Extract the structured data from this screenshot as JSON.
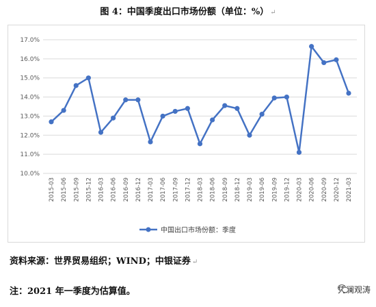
{
  "chart_data": {
    "type": "line",
    "title": "图 4：中国季度出口市场份额（单位：%）",
    "categories": [
      "2015-03",
      "2015-06",
      "2015-09",
      "2015-12",
      "2016-03",
      "2016-06",
      "2016-09",
      "2016-12",
      "2017-03",
      "2017-06",
      "2017-09",
      "2017-12",
      "2018-03",
      "2018-06",
      "2018-09",
      "2018-12",
      "2019-03",
      "2019-06",
      "2019-09",
      "2019-12",
      "2020-03",
      "2020-06",
      "2020-09",
      "2020-12",
      "2021-03"
    ],
    "series": [
      {
        "name": "中国出口市场份额：季度",
        "values": [
          12.7,
          13.3,
          14.6,
          15.0,
          12.15,
          12.9,
          13.85,
          13.85,
          11.65,
          13.0,
          13.25,
          13.4,
          11.55,
          12.8,
          13.55,
          13.4,
          12.0,
          13.1,
          13.95,
          14.0,
          11.1,
          16.65,
          15.8,
          15.95,
          14.2
        ],
        "color": "#4472c4"
      }
    ],
    "ylim": [
      10.0,
      17.0
    ],
    "yticks": [
      "10.0%",
      "11.0%",
      "12.0%",
      "13.0%",
      "14.0%",
      "15.0%",
      "16.0%",
      "17.0%"
    ],
    "grid": true,
    "legend": "bottom",
    "xlabel": "",
    "ylabel": ""
  },
  "source": "资料来源：世界贸易组织；WIND；中银证券",
  "note": "注：2021 年一季度为估算值。",
  "watermark": "凭澜观涛",
  "paragraph_mark": "↵"
}
